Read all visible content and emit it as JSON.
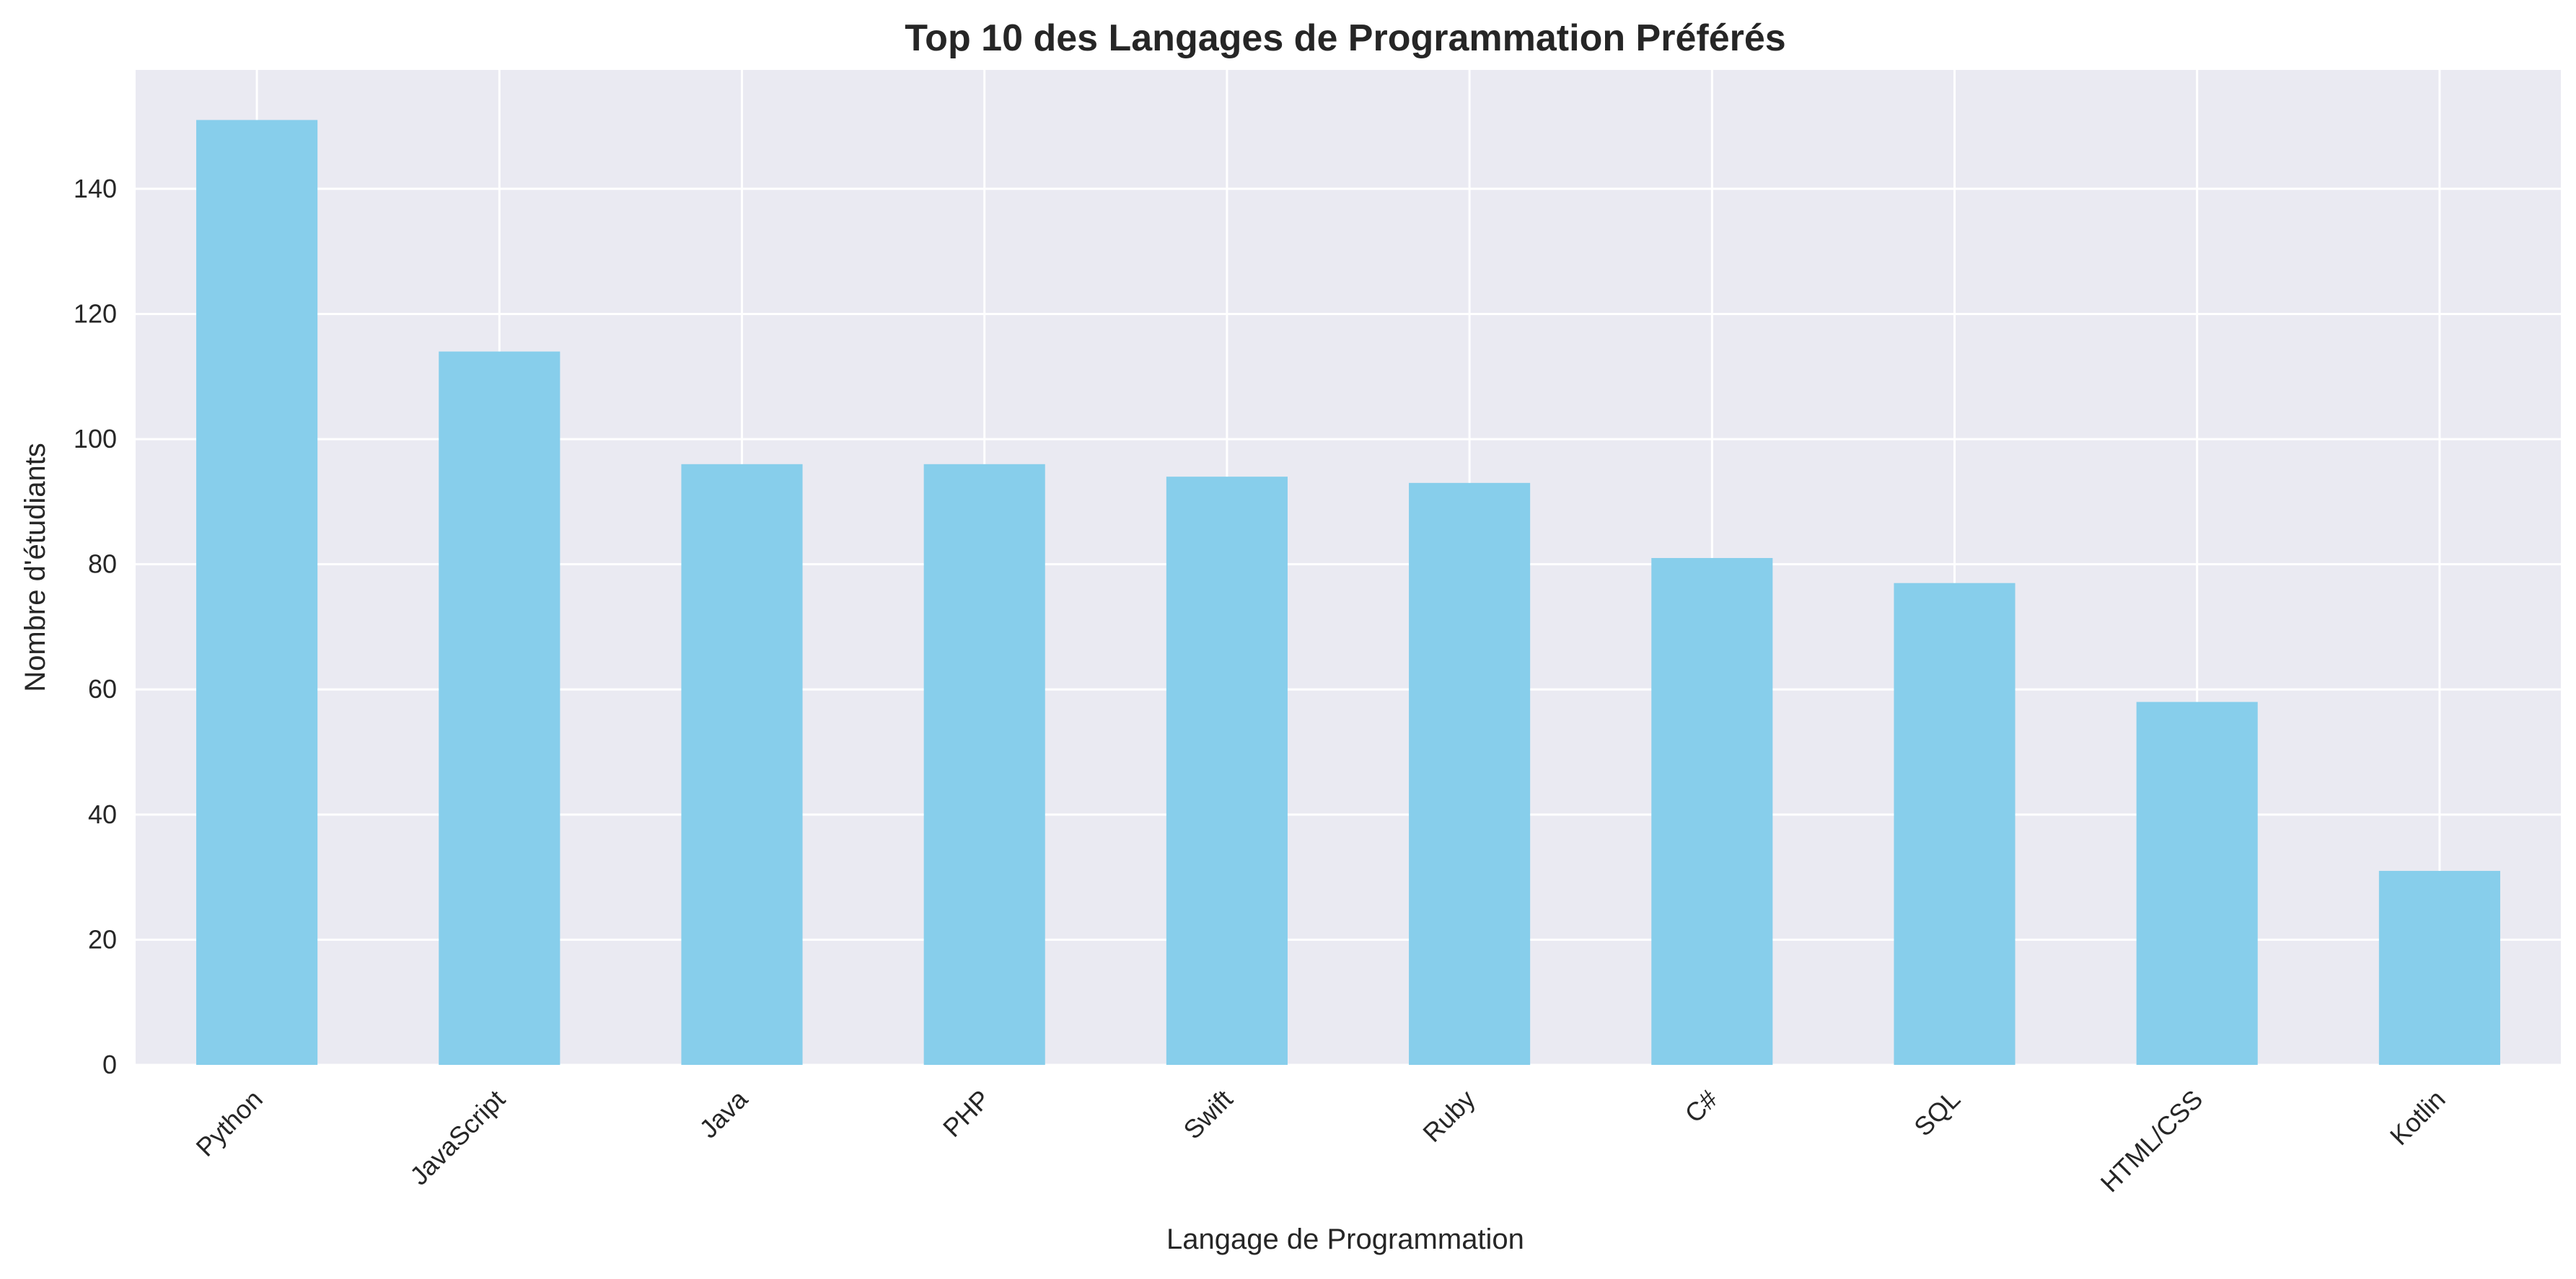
{
  "chart_data": {
    "type": "bar",
    "title": "Top 10 des Langages de Programmation Préférés",
    "xlabel": "Langage de Programmation",
    "ylabel": "Nombre d'étudiants",
    "categories": [
      "Python",
      "JavaScript",
      "Java",
      "PHP",
      "Swift",
      "Ruby",
      "C#",
      "SQL",
      "HTML/CSS",
      "Kotlin"
    ],
    "values": [
      151,
      114,
      96,
      96,
      94,
      93,
      81,
      77,
      58,
      31
    ],
    "ylim": [
      0,
      159
    ],
    "yticks": [
      0,
      20,
      40,
      60,
      80,
      100,
      120,
      140
    ],
    "grid": true,
    "colors": {
      "bar": "#87CEEB",
      "plot_background": "#EAEAF2",
      "grid": "#FFFFFF",
      "text": "#262626"
    }
  }
}
